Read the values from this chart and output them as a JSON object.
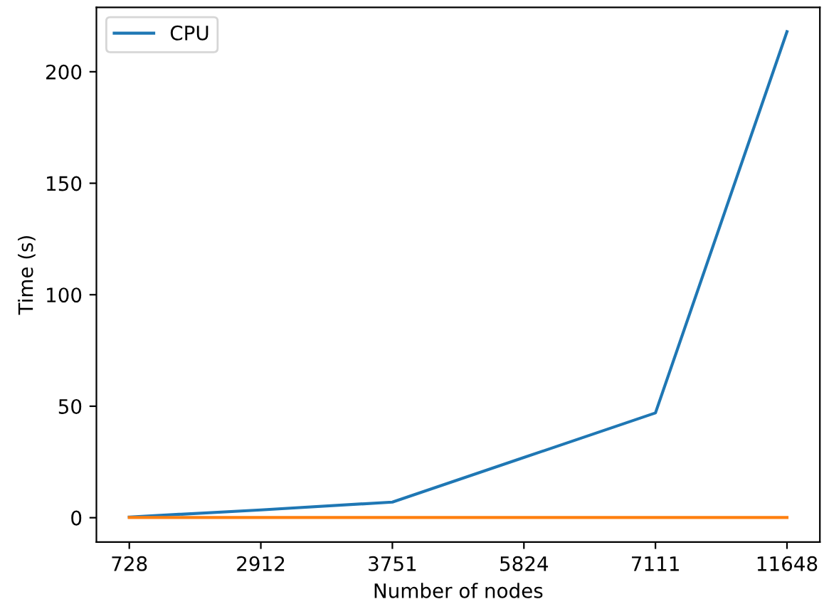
{
  "chart_data": {
    "type": "line",
    "xlabel": "Number of nodes",
    "ylabel": "Time (s)",
    "categories": [
      "728",
      "2912",
      "3751",
      "5824",
      "7111",
      "11648"
    ],
    "series": [
      {
        "name": "CPU",
        "color": "#1f77b4",
        "values": [
          0.3,
          3.5,
          7,
          27,
          47,
          218
        ]
      },
      {
        "color": "#ff7f0e",
        "values": [
          0.1,
          0.1,
          0.1,
          0.1,
          0.1,
          0.1
        ]
      }
    ],
    "ylim": [
      -10.9,
      228.9
    ],
    "yticks": [
      0,
      50,
      100,
      150,
      200
    ],
    "grid": false,
    "legend": "top left"
  }
}
